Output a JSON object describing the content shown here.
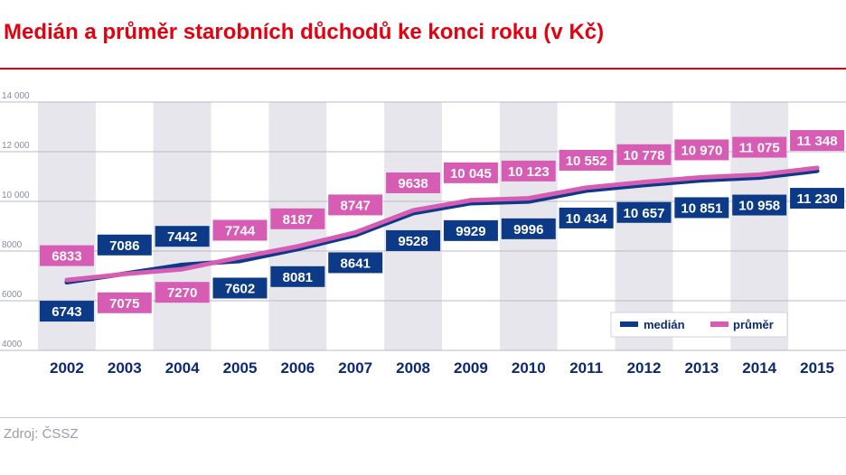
{
  "title": "Medián a průměr starobních důchodů ke konci roku (v Kč)",
  "source": "Zdroj: ČSSZ",
  "colors": {
    "title": "#e3000f",
    "median": "#0d3a87",
    "mean": "#d65cb4",
    "band": "#e6e6ec",
    "axis_text": "#0d2a6e"
  },
  "chart_data": {
    "type": "line",
    "x": [
      "2002",
      "2003",
      "2004",
      "2005",
      "2006",
      "2007",
      "2008",
      "2009",
      "2010",
      "2011",
      "2012",
      "2013",
      "2014",
      "2015"
    ],
    "ylim": [
      4000,
      14000
    ],
    "yticks": [
      4000,
      6000,
      8000,
      10000,
      12000,
      14000
    ],
    "ytick_labels": [
      "4000",
      "6000",
      "8000",
      "10 000",
      "12 000",
      "14 000"
    ],
    "legend_position": "bottom-right",
    "alternating_bands": true,
    "series": [
      {
        "name": "medián",
        "values": [
          6743,
          7086,
          7442,
          7602,
          8081,
          8641,
          9528,
          9929,
          9996,
          10434,
          10657,
          10851,
          10958,
          11230
        ],
        "labels": [
          "6743",
          "7086",
          "7442",
          "7602",
          "8081",
          "8641",
          "9528",
          "9929",
          "9996",
          "10 434",
          "10 657",
          "10 851",
          "10 958",
          "11 230"
        ]
      },
      {
        "name": "průměr",
        "values": [
          6833,
          7075,
          7270,
          7744,
          8187,
          8747,
          9638,
          10045,
          10123,
          10552,
          10778,
          10970,
          11075,
          11348
        ],
        "labels": [
          "6833",
          "7075",
          "7270",
          "7744",
          "8187",
          "8747",
          "9638",
          "10 045",
          "10 123",
          "10 552",
          "10 778",
          "10 970",
          "11 075",
          "11 348"
        ]
      }
    ]
  }
}
